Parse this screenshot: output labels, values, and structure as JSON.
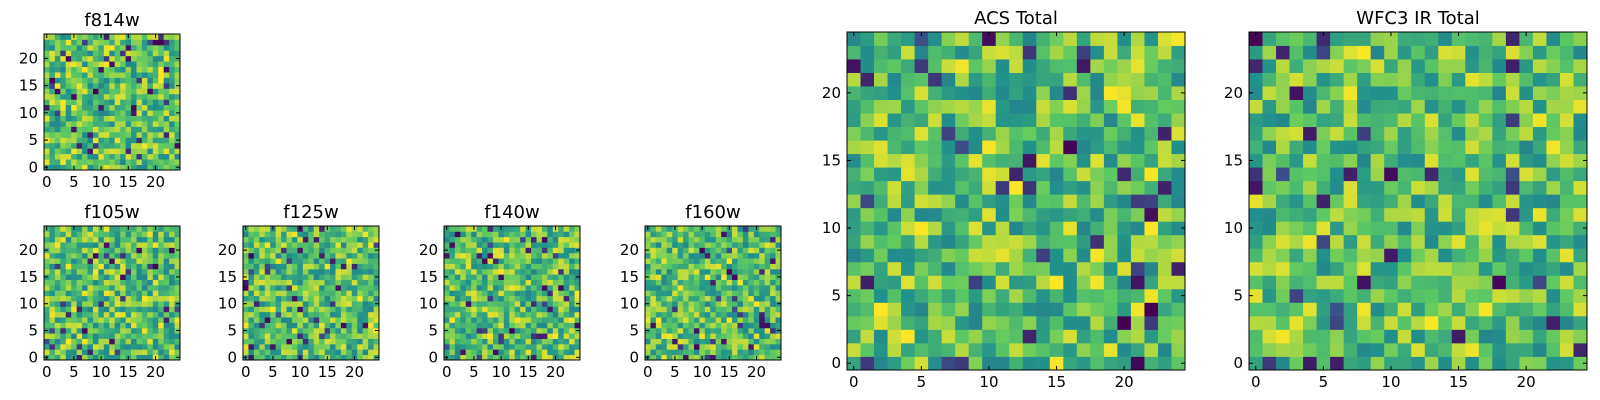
{
  "chart_data": [
    {
      "id": "f814w",
      "type": "heatmap",
      "title": "f814w",
      "xlim": [
        0,
        25
      ],
      "ylim": [
        0,
        25
      ],
      "xticks": [
        0,
        5,
        10,
        15,
        20
      ],
      "yticks": [
        0,
        5,
        10,
        15,
        20
      ],
      "grid_size": [
        25,
        25
      ],
      "seed": 11
    },
    {
      "id": "f105w",
      "type": "heatmap",
      "title": "f105w",
      "xlim": [
        0,
        25
      ],
      "ylim": [
        0,
        25
      ],
      "xticks": [
        0,
        5,
        10,
        15,
        20
      ],
      "yticks": [
        0,
        5,
        10,
        15,
        20
      ],
      "grid_size": [
        25,
        25
      ],
      "seed": 23
    },
    {
      "id": "f125w",
      "type": "heatmap",
      "title": "f125w",
      "xlim": [
        0,
        25
      ],
      "ylim": [
        0,
        25
      ],
      "xticks": [
        0,
        5,
        10,
        15,
        20
      ],
      "yticks": [
        0,
        5,
        10,
        15,
        20
      ],
      "grid_size": [
        25,
        25
      ],
      "seed": 37
    },
    {
      "id": "f140w",
      "type": "heatmap",
      "title": "f140w",
      "xlim": [
        0,
        25
      ],
      "ylim": [
        0,
        25
      ],
      "xticks": [
        0,
        5,
        10,
        15,
        20
      ],
      "yticks": [
        0,
        5,
        10,
        15,
        20
      ],
      "grid_size": [
        25,
        25
      ],
      "seed": 41
    },
    {
      "id": "f160w",
      "type": "heatmap",
      "title": "f160w",
      "xlim": [
        0,
        25
      ],
      "ylim": [
        0,
        25
      ],
      "xticks": [
        0,
        5,
        10,
        15,
        20
      ],
      "yticks": [
        0,
        5,
        10,
        15,
        20
      ],
      "grid_size": [
        25,
        25
      ],
      "seed": 53
    },
    {
      "id": "acs-total",
      "type": "heatmap",
      "title": "ACS Total",
      "xlim": [
        0,
        25
      ],
      "ylim": [
        0,
        25
      ],
      "xticks": [
        0,
        5,
        10,
        15,
        20
      ],
      "yticks": [
        0,
        5,
        10,
        15,
        20
      ],
      "grid_size": [
        25,
        25
      ],
      "seed": 67
    },
    {
      "id": "wfc3-ir-total",
      "type": "heatmap",
      "title": "WFC3 IR Total",
      "xlim": [
        0,
        25
      ],
      "ylim": [
        0,
        25
      ],
      "xticks": [
        0,
        5,
        10,
        15,
        20
      ],
      "yticks": [
        0,
        5,
        10,
        15,
        20
      ],
      "grid_size": [
        25,
        25
      ],
      "seed": 79
    }
  ],
  "colors": {
    "colormap": [
      "#440154",
      "#3b528b",
      "#21918c",
      "#5ec962",
      "#fde725"
    ]
  }
}
